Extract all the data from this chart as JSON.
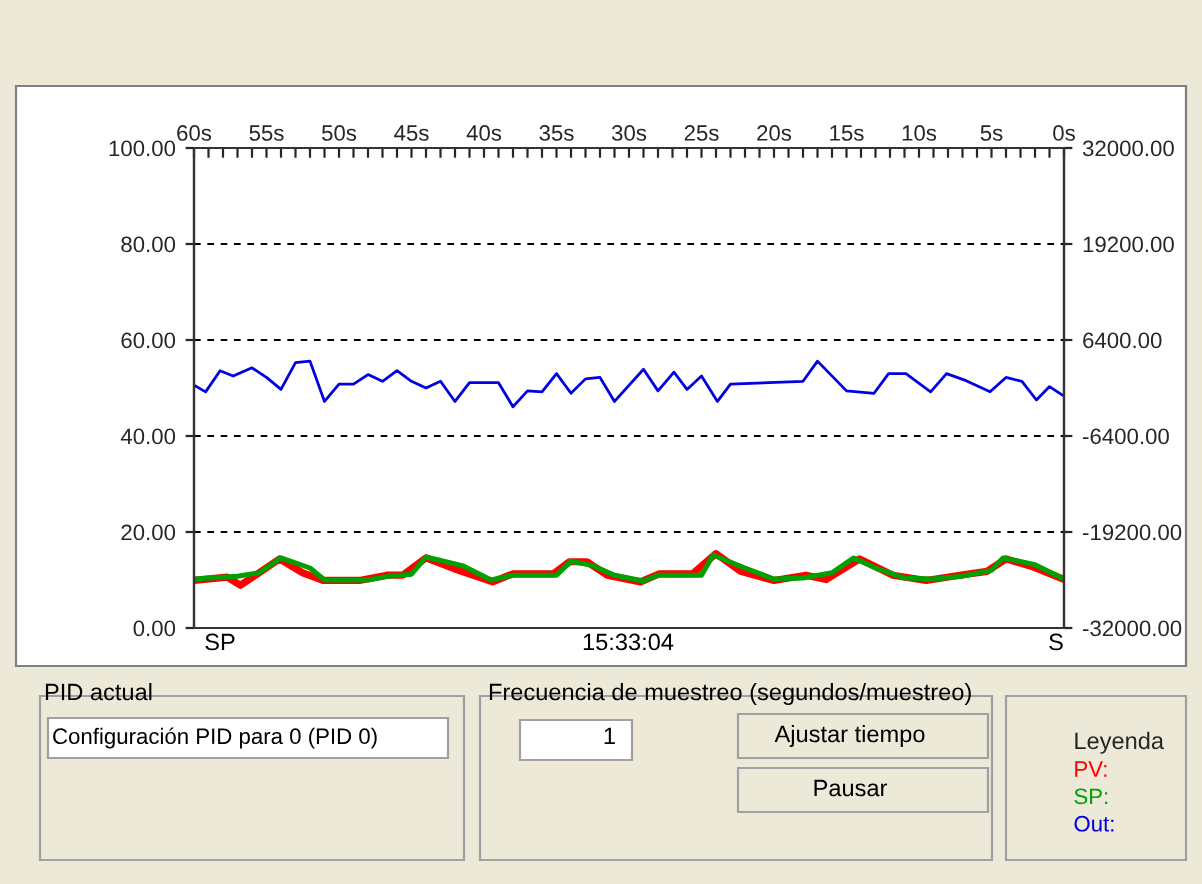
{
  "chart_data": {
    "type": "line",
    "xlim": [
      60,
      0
    ],
    "xticks": [
      {
        "value": 60,
        "label": "60s"
      },
      {
        "value": 59,
        "label": null
      },
      {
        "value": 58,
        "label": null
      },
      {
        "value": 57,
        "label": null
      },
      {
        "value": 56,
        "label": null
      },
      {
        "value": 55,
        "label": "55s"
      },
      {
        "value": 54,
        "label": null
      },
      {
        "value": 53,
        "label": null
      },
      {
        "value": 52,
        "label": null
      },
      {
        "value": 51,
        "label": null
      },
      {
        "value": 50,
        "label": "50s"
      },
      {
        "value": 49,
        "label": null
      },
      {
        "value": 48,
        "label": null
      },
      {
        "value": 47,
        "label": null
      },
      {
        "value": 46,
        "label": null
      },
      {
        "value": 45,
        "label": "45s"
      },
      {
        "value": 44,
        "label": null
      },
      {
        "value": 43,
        "label": null
      },
      {
        "value": 42,
        "label": null
      },
      {
        "value": 41,
        "label": null
      },
      {
        "value": 40,
        "label": "40s"
      },
      {
        "value": 39,
        "label": null
      },
      {
        "value": 38,
        "label": null
      },
      {
        "value": 37,
        "label": null
      },
      {
        "value": 36,
        "label": null
      },
      {
        "value": 35,
        "label": "35s"
      },
      {
        "value": 34,
        "label": null
      },
      {
        "value": 33,
        "label": null
      },
      {
        "value": 32,
        "label": null
      },
      {
        "value": 31,
        "label": null
      },
      {
        "value": 30,
        "label": "30s"
      },
      {
        "value": 29,
        "label": null
      },
      {
        "value": 28,
        "label": null
      },
      {
        "value": 27,
        "label": null
      },
      {
        "value": 26,
        "label": null
      },
      {
        "value": 25,
        "label": "25s"
      },
      {
        "value": 24,
        "label": null
      },
      {
        "value": 23,
        "label": null
      },
      {
        "value": 22,
        "label": null
      },
      {
        "value": 21,
        "label": null
      },
      {
        "value": 20,
        "label": "20s"
      },
      {
        "value": 19,
        "label": null
      },
      {
        "value": 18,
        "label": null
      },
      {
        "value": 17,
        "label": null
      },
      {
        "value": 16,
        "label": null
      },
      {
        "value": 15,
        "label": "15s"
      },
      {
        "value": 14,
        "label": null
      },
      {
        "value": 13,
        "label": null
      },
      {
        "value": 12,
        "label": null
      },
      {
        "value": 11,
        "label": null
      },
      {
        "value": 10,
        "label": "10s"
      },
      {
        "value": 9,
        "label": null
      },
      {
        "value": 8,
        "label": null
      },
      {
        "value": 7,
        "label": null
      },
      {
        "value": 6,
        "label": null
      },
      {
        "value": 5,
        "label": "5s"
      },
      {
        "value": 4,
        "label": null
      },
      {
        "value": 3,
        "label": null
      },
      {
        "value": 2,
        "label": null
      },
      {
        "value": 1,
        "label": null
      },
      {
        "value": 0,
        "label": "0s"
      }
    ],
    "ylim": [
      0,
      100
    ],
    "yticks": [
      {
        "value": 0,
        "label": "0.00"
      },
      {
        "value": 20,
        "label": "20.00"
      },
      {
        "value": 40,
        "label": "40.00"
      },
      {
        "value": 60,
        "label": "60.00"
      },
      {
        "value": 80,
        "label": "80.00"
      },
      {
        "value": 100,
        "label": "100.00"
      }
    ],
    "y2lim": [
      -32000,
      32000
    ],
    "y2ticks": [
      {
        "value": -32000,
        "label": "-32000.00"
      },
      {
        "value": -19200,
        "label": "-19200.00"
      },
      {
        "value": -6400,
        "label": "-6400.00"
      },
      {
        "value": 6400,
        "label": "6400.00"
      },
      {
        "value": 19200,
        "label": "19200.00"
      },
      {
        "value": 32000,
        "label": "32000.00"
      }
    ],
    "grid": "y",
    "line_style": "solid",
    "legend": "bottom right",
    "legend_title": "Leyenda",
    "series": [
      {
        "name": "PV:",
        "color": "#ff0000",
        "x": [
          60,
          57.7,
          56.8,
          55.4,
          54.1,
          52.5,
          51.1,
          48.6,
          46.7,
          45.6,
          44,
          42.1,
          39.4,
          38,
          35.2,
          34.1,
          32.9,
          31.5,
          29.2,
          27.9,
          25.6,
          24,
          22.3,
          20,
          17.8,
          16.4,
          14.1,
          11.8,
          9.5,
          7.2,
          5.3,
          4,
          2.1,
          0
        ],
        "values": [
          9.9,
          10.6,
          8.9,
          11.7,
          14.4,
          11.5,
          9.9,
          9.9,
          11,
          11,
          14.6,
          12.4,
          9.6,
          11.3,
          11.3,
          13.8,
          13.8,
          11,
          9.6,
          11.3,
          11.3,
          15.5,
          11.8,
          9.9,
          11,
          10.1,
          14.4,
          11,
          9.9,
          11,
          11.8,
          14.4,
          12.7,
          10.1
        ]
      },
      {
        "name": "SP:",
        "color": "#00a000",
        "x": [
          60,
          57,
          55.5,
          54,
          52,
          51,
          48,
          46.5,
          45,
          44,
          41.5,
          39.5,
          38,
          35,
          34,
          32.5,
          31,
          29,
          28,
          25,
          24.2,
          22,
          20,
          18,
          16,
          14.5,
          13,
          11,
          9,
          7,
          5,
          4.2,
          2,
          0
        ],
        "values": [
          10.2,
          10.8,
          11.5,
          14.6,
          12.5,
          10,
          10,
          10.8,
          11.2,
          14.8,
          13,
          10,
          11,
          11,
          13.9,
          13,
          11,
          9.8,
          11,
          11,
          15.2,
          12.5,
          10.2,
          10.4,
          11.5,
          14.6,
          12.5,
          10.4,
          10.2,
          10.8,
          12,
          14.6,
          13.2,
          10.2
        ]
      },
      {
        "name": "Out:",
        "color": "#0000e0",
        "x": [
          60,
          59.2,
          58.2,
          57.3,
          56,
          55,
          54,
          53,
          52,
          51,
          50,
          49,
          48,
          47,
          46,
          45,
          44,
          43,
          42,
          41,
          39,
          38,
          37,
          36,
          35,
          34,
          33,
          32,
          31,
          29,
          28,
          26.9,
          26,
          25,
          23.9,
          23,
          18,
          17,
          15,
          13.1,
          12.1,
          10.9,
          9.2,
          8.1,
          6.9,
          5.1,
          4,
          2.9,
          1.9,
          1,
          0
        ],
        "values": [
          50.6,
          49.2,
          53.6,
          52.5,
          54.2,
          52.2,
          49.7,
          55.3,
          55.6,
          47.2,
          50.8,
          50.8,
          52.8,
          51.4,
          53.6,
          51.4,
          50,
          51.4,
          47.2,
          51.1,
          51.1,
          46.1,
          49.4,
          49.2,
          53,
          48.9,
          51.9,
          52.2,
          47.2,
          53.9,
          49.4,
          53.3,
          49.7,
          52.5,
          47.2,
          50.8,
          51.4,
          55.6,
          49.4,
          48.9,
          53,
          53,
          49.2,
          53,
          51.7,
          49.2,
          52.2,
          51.4,
          47.5,
          50.3,
          48.3
        ]
      }
    ],
    "annotations": [
      "SP",
      "15:33:04",
      "S",
      "PID actual",
      "Configuración PID para 0 (PID 0)",
      "Frecuencia de muestreo (segundos/muestreo)",
      "1",
      "Ajustar tiempo",
      "Pausar"
    ]
  }
}
